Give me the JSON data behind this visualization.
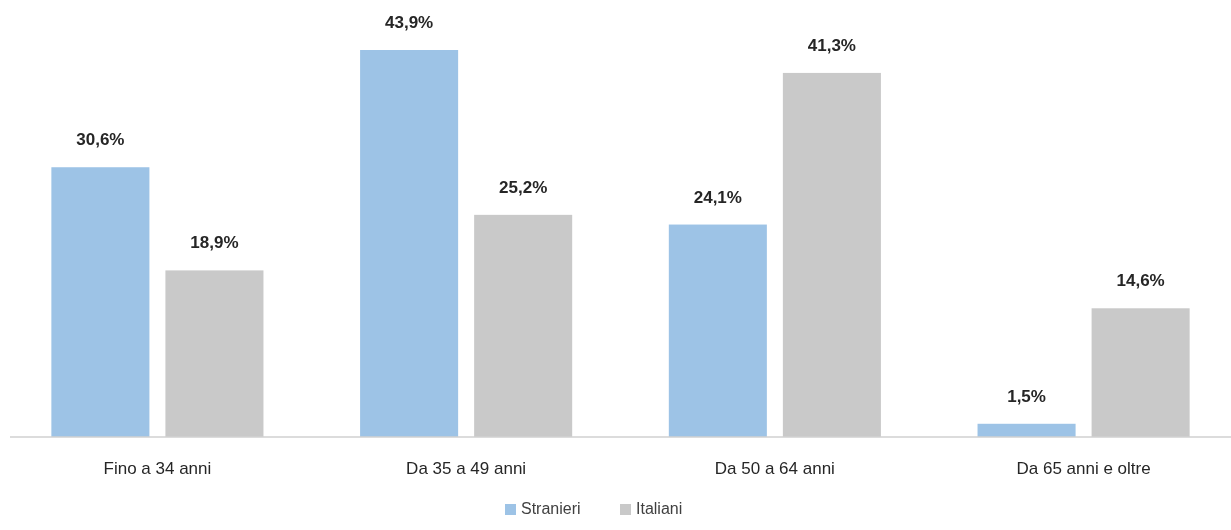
{
  "chart_data": {
    "type": "bar",
    "categories": [
      "Fino a 34 anni",
      "Da 35 a 49 anni",
      "Da 50 a 64 anni",
      "Da 65 anni e oltre"
    ],
    "series": [
      {
        "name": "Stranieri",
        "color": "#9dc3e6",
        "values": [
          30.6,
          43.9,
          24.1,
          1.5
        ],
        "value_labels": [
          "30,6%",
          "43,9%",
          "24,1%",
          "1,5%"
        ]
      },
      {
        "name": "Italiani",
        "color": "#c9c9c9",
        "values": [
          18.9,
          25.2,
          41.3,
          14.6
        ],
        "value_labels": [
          "18,9%",
          "25,2%",
          "41,3%",
          "14,6%"
        ]
      }
    ],
    "legend": "bottom"
  }
}
